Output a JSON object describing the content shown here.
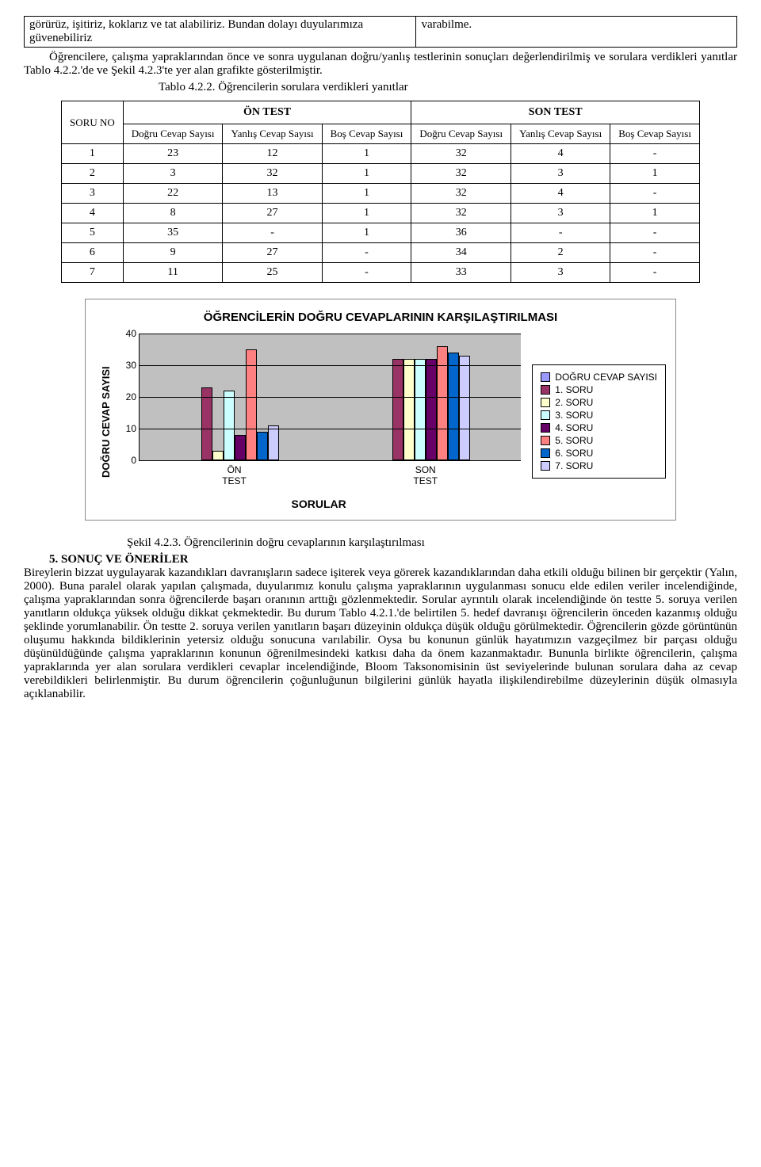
{
  "top_table": {
    "left": "görürüz, işitiriz, koklarız ve tat alabiliriz. Bundan dolayı duyularımıza güvenebiliriz",
    "right": "varabilme."
  },
  "para1": "Öğrencilere, çalışma yapraklarından önce ve sonra uygulanan doğru/yanlış testlerinin sonuçları değerlendirilmiş ve sorulara verdikleri yanıtlar Tablo 4.2.2.'de ve Şekil 4.2.3'te yer alan grafikte gösterilmiştir.",
  "table_caption": "Tablo 4.2.2. Öğrencilerin sorulara verdikleri yanıtlar",
  "table": {
    "group_headers": [
      "ÖN TEST",
      "SON TEST"
    ],
    "row_header": "SORU NO",
    "sub_headers": [
      "Doğru Cevap Sayısı",
      "Yanlış Cevap Sayısı",
      "Boş Cevap Sayısı",
      "Doğru Cevap Sayısı",
      "Yanlış Cevap Sayısı",
      "Boş Cevap Sayısı"
    ],
    "rows": [
      [
        "1",
        "23",
        "12",
        "1",
        "32",
        "4",
        "-"
      ],
      [
        "2",
        "3",
        "32",
        "1",
        "32",
        "3",
        "1"
      ],
      [
        "3",
        "22",
        "13",
        "1",
        "32",
        "4",
        "-"
      ],
      [
        "4",
        "8",
        "27",
        "1",
        "32",
        "3",
        "1"
      ],
      [
        "5",
        "35",
        "-",
        "1",
        "36",
        "-",
        "-"
      ],
      [
        "6",
        "9",
        "27",
        "-",
        "34",
        "2",
        "-"
      ],
      [
        "7",
        "11",
        "25",
        "-",
        "33",
        "3",
        "-"
      ]
    ]
  },
  "chart": {
    "title": "ÖĞRENCİLERİN DOĞRU CEVAPLARININ KARŞILAŞTIRILMASI",
    "ylabel": "DOĞRU CEVAP SAYISI",
    "xlabel": "SORULAR",
    "ymax": 40,
    "ytick_step": 10,
    "yticks": [
      0,
      10,
      20,
      30,
      40
    ],
    "plot_bg": "#c0c0c0",
    "categories": [
      "ÖN TEST",
      "SON TEST"
    ],
    "series": [
      {
        "label": "DOĞRU CEVAP SAYISI",
        "color": "#9999ff"
      },
      {
        "label": "1. SORU",
        "color": "#993366"
      },
      {
        "label": "2. SORU",
        "color": "#ffffcc"
      },
      {
        "label": "3. SORU",
        "color": "#ccffff"
      },
      {
        "label": "4. SORU",
        "color": "#660066"
      },
      {
        "label": "5. SORU",
        "color": "#ff8080"
      },
      {
        "label": "6. SORU",
        "color": "#0066cc"
      },
      {
        "label": "7. SORU",
        "color": "#ccccff"
      }
    ],
    "data": {
      "ÖN TEST": [
        null,
        23,
        3,
        22,
        8,
        35,
        9,
        11
      ],
      "SON TEST": [
        null,
        32,
        32,
        32,
        32,
        36,
        34,
        33
      ]
    }
  },
  "figure_caption": "Şekil 4.2.3. Öğrencilerinin doğru cevaplarının karşılaştırılması",
  "section5_head": "5. SONUÇ VE ÖNERİLER",
  "section5_body": "Bireylerin bizzat uygulayarak kazandıkları davranışların sadece işiterek veya görerek kazandıklarından daha etkili olduğu bilinen bir gerçektir (Yalın, 2000). Buna paralel olarak yapılan çalışmada, duyularımız konulu çalışma yapraklarının uygulanması sonucu elde edilen veriler incelendiğinde, çalışma yapraklarından sonra öğrencilerde başarı oranının arttığı gözlenmektedir. Sorular ayrıntılı olarak incelendiğinde ön testte 5. soruya verilen yanıtların oldukça yüksek olduğu dikkat çekmektedir. Bu durum Tablo 4.2.1.'de belirtilen 5. hedef davranışı öğrencilerin önceden kazanmış olduğu şeklinde yorumlanabilir. Ön testte 2. soruya verilen yanıtların başarı düzeyinin oldukça düşük olduğu görülmektedir. Öğrencilerin gözde görüntünün oluşumu hakkında bildiklerinin yetersiz olduğu sonucuna varılabilir. Oysa bu konunun günlük hayatımızın vazgeçilmez bir parçası olduğu düşünüldüğünde çalışma yapraklarının konunun öğrenilmesindeki katkısı daha da önem kazanmaktadır. Bununla birlikte öğrencilerin, çalışma yapraklarında yer alan sorulara verdikleri cevaplar incelendiğinde, Bloom Taksonomisinin üst seviyelerinde bulunan sorulara daha az cevap verebildikleri belirlenmiştir. Bu durum öğrencilerin çoğunluğunun bilgilerini günlük hayatla ilişkilendirebilme düzeylerinin düşük olmasıyla açıklanabilir."
}
